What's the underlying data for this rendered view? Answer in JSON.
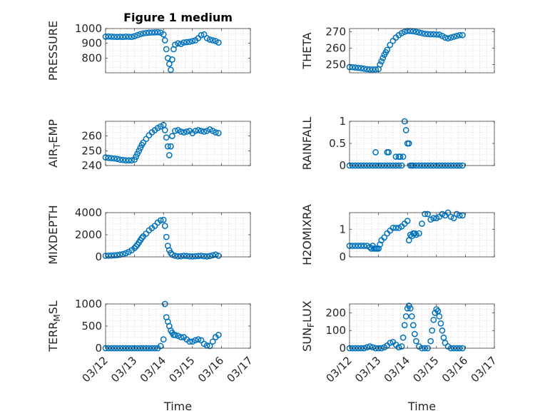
{
  "figure_title": "Figure 1 medium",
  "colors": {
    "series": "#0072bd",
    "axis": "#262626",
    "grid": "#b8b8b8",
    "background": "#ffffff"
  },
  "chart_data": [
    {
      "type": "scatter",
      "title": "Figure 1 medium",
      "ylabel": "PRESSURE",
      "ylabel_parts": [
        {
          "t": "PRESSURE"
        }
      ],
      "xlabel": "",
      "xlim": [
        "03/12",
        "03/17"
      ],
      "ylim": [
        700,
        1000
      ],
      "yticks": [
        800,
        900,
        1000
      ],
      "grid": true,
      "series": [
        {
          "x": [
            0.0,
            0.1,
            0.2,
            0.3,
            0.4,
            0.5,
            0.6,
            0.7,
            0.8,
            0.9,
            1.0,
            1.1,
            1.2,
            1.3,
            1.4,
            1.5,
            1.6,
            1.7,
            1.8,
            1.9,
            2.0,
            2.05,
            2.1,
            2.15,
            2.2,
            2.25,
            2.3,
            2.35,
            2.4,
            2.5,
            2.6,
            2.7,
            2.8,
            2.9,
            3.0,
            3.1,
            3.2,
            3.3,
            3.4,
            3.5,
            3.6,
            3.7,
            3.8,
            3.9
          ],
          "y": [
            945,
            946,
            945,
            944,
            943,
            944,
            943,
            945,
            944,
            943,
            948,
            955,
            962,
            967,
            970,
            972,
            973,
            974,
            975,
            972,
            960,
            920,
            860,
            800,
            760,
            720,
            790,
            860,
            890,
            900,
            895,
            905,
            908,
            910,
            915,
            920,
            935,
            955,
            960,
            935,
            925,
            920,
            915,
            905
          ]
        }
      ]
    },
    {
      "type": "scatter",
      "ylabel": "THETA",
      "ylabel_parts": [
        {
          "t": "THETA"
        }
      ],
      "xlabel": "",
      "xlim": [
        "03/12",
        "03/17"
      ],
      "ylim": [
        245,
        272
      ],
      "yticks": [
        250,
        260,
        270
      ],
      "grid": true,
      "series": [
        {
          "x": [
            0.0,
            0.1,
            0.2,
            0.3,
            0.4,
            0.5,
            0.6,
            0.7,
            0.8,
            0.9,
            1.0,
            1.05,
            1.1,
            1.15,
            1.2,
            1.25,
            1.3,
            1.4,
            1.5,
            1.6,
            1.7,
            1.8,
            1.9,
            2.0,
            2.1,
            2.2,
            2.3,
            2.4,
            2.5,
            2.6,
            2.7,
            2.8,
            2.9,
            3.0,
            3.1,
            3.2,
            3.3,
            3.4,
            3.5,
            3.6,
            3.7,
            3.8,
            3.9
          ],
          "y": [
            248.5,
            248.4,
            248.2,
            248.0,
            247.8,
            247.5,
            247.2,
            247.0,
            247.0,
            247.1,
            247.3,
            250,
            252,
            254,
            256,
            257.5,
            259,
            262,
            264.5,
            266.5,
            268,
            269.2,
            270,
            270.5,
            270.5,
            270.3,
            270,
            269.6,
            269.2,
            268.8,
            268.6,
            268.5,
            268.5,
            268.4,
            268.3,
            267.5,
            266.5,
            266,
            266.5,
            267,
            267.5,
            268,
            268
          ]
        }
      ]
    },
    {
      "type": "scatter",
      "ylabel": "AIR_TEMP",
      "ylabel_parts": [
        {
          "t": "AIR"
        },
        {
          "t": "T",
          "sub": true
        },
        {
          "t": "EMP"
        }
      ],
      "xlabel": "",
      "xlim": [
        "03/12",
        "03/17"
      ],
      "ylim": [
        240,
        270
      ],
      "yticks": [
        240,
        250,
        260
      ],
      "grid": true,
      "series": [
        {
          "x": [
            0.0,
            0.1,
            0.2,
            0.3,
            0.4,
            0.5,
            0.6,
            0.7,
            0.8,
            0.9,
            1.0,
            1.05,
            1.1,
            1.15,
            1.2,
            1.25,
            1.3,
            1.4,
            1.5,
            1.6,
            1.7,
            1.8,
            1.9,
            2.0,
            2.05,
            2.1,
            2.15,
            2.2,
            2.25,
            2.3,
            2.4,
            2.5,
            2.6,
            2.7,
            2.8,
            2.9,
            3.0,
            3.1,
            3.2,
            3.3,
            3.4,
            3.5,
            3.6,
            3.7,
            3.8,
            3.9
          ],
          "y": [
            245.5,
            245.2,
            245,
            244.8,
            244.5,
            244,
            243.8,
            243.5,
            243.5,
            243.5,
            244,
            246,
            248,
            250,
            252,
            254,
            255.5,
            258,
            260.5,
            262.5,
            264,
            265.5,
            266.5,
            267.5,
            264,
            259,
            253,
            247,
            253,
            260,
            263.5,
            264,
            263,
            262.5,
            263,
            263.5,
            262,
            263.5,
            264,
            263.5,
            263,
            263.5,
            264.5,
            263.5,
            262.5,
            262
          ]
        }
      ]
    },
    {
      "type": "scatter",
      "ylabel": "RAINFALL",
      "ylabel_parts": [
        {
          "t": "RAINFALL"
        }
      ],
      "xlabel": "",
      "xlim": [
        "03/12",
        "03/17"
      ],
      "ylim": [
        0,
        1
      ],
      "yticks": [
        0,
        0.5,
        1
      ],
      "ytick_labels": [
        "0",
        "0.5",
        "1"
      ],
      "grid": true,
      "series": [
        {
          "x": [
            0.0,
            0.1,
            0.2,
            0.3,
            0.4,
            0.5,
            0.6,
            0.7,
            0.8,
            0.9,
            1.0,
            1.1,
            1.2,
            1.3,
            1.4,
            1.5,
            1.6,
            1.7,
            1.8,
            1.85,
            1.9,
            1.95,
            2.0,
            2.05,
            2.1,
            2.15,
            2.2,
            2.3,
            2.4,
            2.5,
            2.6,
            2.7,
            2.8,
            2.9,
            3.0,
            3.1,
            3.2,
            3.3,
            3.4,
            3.5,
            3.6,
            3.7,
            3.8,
            3.9,
            0.9,
            1.3,
            1.35,
            1.6,
            1.7,
            1.75
          ],
          "y": [
            0,
            0,
            0,
            0,
            0,
            0,
            0,
            0,
            0,
            0,
            0,
            0,
            0,
            0,
            0,
            0,
            0,
            0,
            0,
            0.2,
            1,
            0.8,
            0.5,
            0.5,
            0,
            0,
            0,
            0,
            0,
            0,
            0,
            0,
            0,
            0,
            0,
            0,
            0,
            0,
            0,
            0,
            0,
            0,
            0,
            0,
            0.3,
            0.3,
            0.3,
            0.2,
            0.2,
            0.2
          ]
        }
      ]
    },
    {
      "type": "scatter",
      "ylabel": "MIXDEPTH",
      "ylabel_parts": [
        {
          "t": "MIXDEPTH"
        }
      ],
      "xlabel": "",
      "xlim": [
        "03/12",
        "03/17"
      ],
      "ylim": [
        0,
        4000
      ],
      "yticks": [
        0,
        2000,
        4000
      ],
      "grid": true,
      "series": [
        {
          "x": [
            0.0,
            0.1,
            0.2,
            0.3,
            0.4,
            0.5,
            0.6,
            0.7,
            0.8,
            0.9,
            1.0,
            1.05,
            1.1,
            1.15,
            1.2,
            1.25,
            1.3,
            1.4,
            1.5,
            1.6,
            1.7,
            1.8,
            1.9,
            2.0,
            2.05,
            2.1,
            2.15,
            2.2,
            2.25,
            2.3,
            2.4,
            2.5,
            2.6,
            2.7,
            2.8,
            2.9,
            3.0,
            3.1,
            3.2,
            3.3,
            3.4,
            3.5,
            3.6,
            3.7,
            3.8,
            3.9
          ],
          "y": [
            100,
            110,
            120,
            140,
            160,
            200,
            250,
            330,
            450,
            600,
            800,
            950,
            1100,
            1300,
            1500,
            1700,
            1850,
            2100,
            2400,
            2600,
            2800,
            3100,
            3300,
            3350,
            2800,
            1800,
            1000,
            600,
            350,
            200,
            100,
            50,
            60,
            100,
            80,
            50,
            40,
            60,
            80,
            100,
            60,
            40,
            80,
            150,
            200,
            100
          ]
        }
      ]
    },
    {
      "type": "scatter",
      "ylabel": "H2OMIXRA",
      "ylabel_parts": [
        {
          "t": "H2OMIXRA"
        }
      ],
      "xlabel": "",
      "xlim": [
        "03/12",
        "03/17"
      ],
      "ylim": [
        0,
        1.6
      ],
      "yticks": [
        0,
        1
      ],
      "grid": true,
      "series": [
        {
          "x": [
            0.0,
            0.1,
            0.2,
            0.3,
            0.4,
            0.5,
            0.6,
            0.7,
            0.75,
            0.8,
            0.85,
            0.9,
            0.95,
            1.0,
            1.05,
            1.1,
            1.2,
            1.3,
            1.4,
            1.5,
            1.6,
            1.7,
            1.8,
            1.9,
            2.0,
            2.05,
            2.1,
            2.15,
            2.2,
            2.25,
            2.3,
            2.4,
            2.5,
            2.6,
            2.7,
            2.8,
            2.9,
            3.0,
            3.1,
            3.2,
            3.3,
            3.4,
            3.5,
            3.6,
            3.7,
            3.8,
            3.9
          ],
          "y": [
            0.4,
            0.4,
            0.4,
            0.4,
            0.4,
            0.4,
            0.4,
            0.35,
            0.3,
            0.4,
            0.3,
            0.3,
            0.3,
            0.3,
            0.45,
            0.6,
            0.7,
            0.85,
            0.95,
            1.05,
            1.05,
            1.05,
            1.1,
            1.2,
            1.3,
            0.6,
            0.8,
            0.75,
            0.85,
            0.85,
            0.8,
            0.85,
            1.2,
            1.55,
            1.55,
            1.35,
            1.4,
            1.4,
            1.45,
            1.55,
            1.5,
            1.6,
            1.45,
            1.4,
            1.55,
            1.5,
            1.5
          ]
        }
      ]
    },
    {
      "type": "scatter",
      "ylabel": "TERR_MSL",
      "ylabel_parts": [
        {
          "t": "TERR"
        },
        {
          "t": "M",
          "sub": true
        },
        {
          "t": "SL"
        }
      ],
      "xlabel": "Time",
      "xlim": [
        "03/12",
        "03/17"
      ],
      "xticks": [
        "03/12",
        "03/13",
        "03/14",
        "03/15",
        "03/16",
        "03/17"
      ],
      "ylim": [
        0,
        1000
      ],
      "yticks": [
        0,
        500,
        1000
      ],
      "grid": true,
      "series": [
        {
          "x": [
            0.0,
            0.1,
            0.2,
            0.3,
            0.4,
            0.5,
            0.6,
            0.7,
            0.8,
            0.9,
            1.0,
            1.1,
            1.2,
            1.3,
            1.4,
            1.5,
            1.6,
            1.7,
            1.8,
            1.9,
            2.0,
            2.05,
            2.1,
            2.15,
            2.2,
            2.25,
            2.3,
            2.35,
            2.4,
            2.5,
            2.6,
            2.7,
            2.8,
            2.9,
            3.0,
            3.1,
            3.2,
            3.3,
            3.4,
            3.5,
            3.6,
            3.7,
            3.8,
            3.9
          ],
          "y": [
            0,
            0,
            0,
            0,
            0,
            0,
            0,
            0,
            0,
            0,
            0,
            0,
            0,
            0,
            0,
            0,
            0,
            0,
            0,
            50,
            200,
            1000,
            700,
            600,
            500,
            400,
            350,
            300,
            300,
            280,
            250,
            250,
            200,
            150,
            150,
            180,
            200,
            180,
            100,
            60,
            50,
            150,
            250,
            300
          ]
        }
      ]
    },
    {
      "type": "scatter",
      "ylabel": "SUN_FLUX",
      "ylabel_parts": [
        {
          "t": "SUN"
        },
        {
          "t": "F",
          "sub": true
        },
        {
          "t": "LUX"
        }
      ],
      "xlabel": "Time",
      "xlim": [
        "03/12",
        "03/17"
      ],
      "xticks": [
        "03/12",
        "03/13",
        "03/14",
        "03/15",
        "03/16",
        "03/17"
      ],
      "ylim": [
        0,
        250
      ],
      "yticks": [
        0,
        100,
        200
      ],
      "grid": true,
      "series": [
        {
          "x": [
            0.0,
            0.1,
            0.2,
            0.3,
            0.4,
            0.5,
            0.6,
            0.7,
            0.8,
            0.9,
            1.0,
            1.1,
            1.2,
            1.3,
            1.4,
            1.5,
            1.6,
            1.7,
            1.8,
            1.85,
            1.9,
            1.95,
            2.0,
            2.05,
            2.1,
            2.15,
            2.2,
            2.25,
            2.3,
            2.4,
            2.5,
            2.6,
            2.7,
            2.8,
            2.85,
            2.9,
            2.95,
            3.0,
            3.05,
            3.1,
            3.15,
            3.2,
            3.25,
            3.3,
            3.4,
            3.5,
            3.6,
            3.7,
            3.8,
            3.9
          ],
          "y": [
            0,
            0,
            0,
            0,
            0,
            0,
            5,
            10,
            5,
            0,
            0,
            0,
            5,
            15,
            30,
            35,
            20,
            5,
            10,
            60,
            130,
            180,
            225,
            240,
            225,
            180,
            130,
            80,
            40,
            10,
            0,
            0,
            0,
            40,
            100,
            160,
            200,
            220,
            210,
            180,
            140,
            100,
            60,
            30,
            10,
            0,
            0,
            0,
            0,
            0
          ]
        }
      ]
    }
  ]
}
